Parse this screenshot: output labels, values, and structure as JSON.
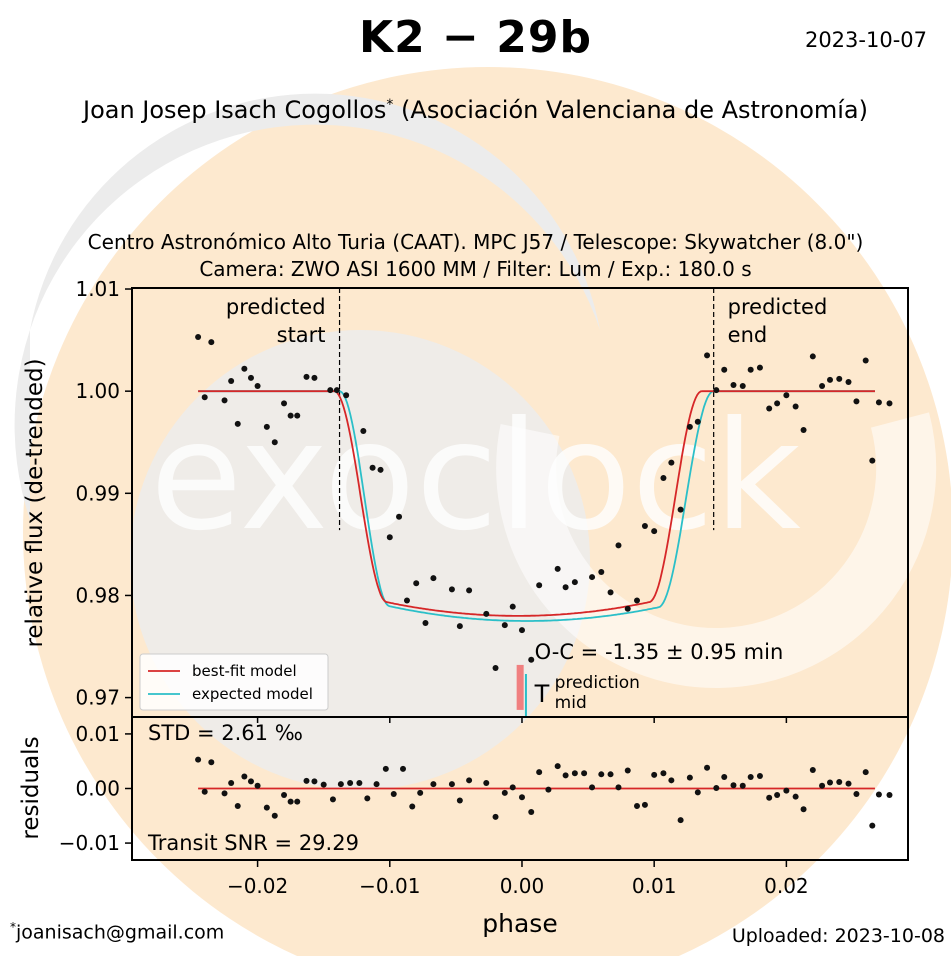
{
  "header": {
    "title": "K2 − 29b",
    "date": "2023-10-07",
    "author": "Joan Josep Isach Cogollos",
    "author_mark": "*",
    "affiliation": "(Asociación Valenciana de Astronomía)"
  },
  "observation": {
    "line1": "Centro Astronómico Alto Turia (CAAT). MPC J57 / Telescope: Skywatcher (8.0\")",
    "line2": "Camera: ZWO ASI 1600 MM / Filter: Lum / Exp.: 180.0 s"
  },
  "footer": {
    "email_mark": "*",
    "email": "joanisach@gmail.com",
    "uploaded": "Uploaded: 2023-10-08"
  },
  "watermark": {
    "text": "exoclock"
  },
  "colors": {
    "best_fit": "#d62728",
    "expected": "#2bbfc8",
    "oc_bar": "#f08080",
    "points": "#111111",
    "watermark_orange": "#fde7c8",
    "watermark_gray": "#efefef"
  },
  "chart_data": [
    {
      "type": "scatter",
      "name": "lightcurve",
      "xlabel": "phase",
      "ylabel": "relative flux (de-trended)",
      "xlim": [
        -0.0295,
        0.0292
      ],
      "ylim": [
        0.9681,
        1.0101
      ],
      "x_ticks": [
        -0.02,
        -0.01,
        0.0,
        0.01,
        0.02
      ],
      "x_tick_labels": [
        "−0.02",
        "−0.01",
        "0.00",
        "0.01",
        "0.02"
      ],
      "y_ticks": [
        0.97,
        0.98,
        0.99,
        1.0,
        1.01
      ],
      "y_tick_labels": [
        "0.97",
        "0.98",
        "0.99",
        "1.00",
        "1.01"
      ],
      "legend": [
        "best-fit model",
        "expected model"
      ],
      "legend_position": "lower-left",
      "annotations": {
        "predicted_start_label": [
          "predicted",
          "start"
        ],
        "predicted_end_label": [
          "predicted",
          "end"
        ],
        "predicted_start_phase": -0.0138,
        "predicted_end_phase": 0.0145,
        "oc_text": "O-C = -1.35 ± 0.95 min",
        "tmid_symbol": "T",
        "tmid_sup": "prediction",
        "tmid_sub": "mid",
        "oc_bar_flux": [
          0.9732,
          0.9717
        ]
      },
      "model": {
        "baseline": 1.0,
        "best_fit": {
          "t1": -0.0142,
          "t2": -0.0102,
          "t3": 0.0096,
          "t4": 0.0136,
          "depth": 0.022
        },
        "expected": {
          "t1": -0.0138,
          "t2": -0.01,
          "t3": 0.0103,
          "t4": 0.0145,
          "depth": 0.0225
        },
        "x_range": [
          -0.0245,
          0.0267
        ]
      },
      "points": [
        {
          "x": -0.0245,
          "y": 1.0053
        },
        {
          "x": -0.024,
          "y": 0.9994
        },
        {
          "x": -0.0235,
          "y": 1.0048
        },
        {
          "x": -0.0225,
          "y": 0.9991
        },
        {
          "x": -0.022,
          "y": 1.001
        },
        {
          "x": -0.0215,
          "y": 0.9968
        },
        {
          "x": -0.021,
          "y": 1.0022
        },
        {
          "x": -0.0205,
          "y": 1.0013
        },
        {
          "x": -0.02,
          "y": 1.0005
        },
        {
          "x": -0.0193,
          "y": 0.9965
        },
        {
          "x": -0.0187,
          "y": 0.995
        },
        {
          "x": -0.018,
          "y": 0.9988
        },
        {
          "x": -0.0175,
          "y": 0.9976
        },
        {
          "x": -0.017,
          "y": 0.9976
        },
        {
          "x": -0.0163,
          "y": 1.0014
        },
        {
          "x": -0.0157,
          "y": 1.0013
        },
        {
          "x": -0.0145,
          "y": 1.0001
        },
        {
          "x": -0.014,
          "y": 1.0001
        },
        {
          "x": -0.0133,
          "y": 0.9996
        },
        {
          "x": -0.012,
          "y": 0.9961
        },
        {
          "x": -0.0113,
          "y": 0.9925
        },
        {
          "x": -0.0107,
          "y": 0.9923
        },
        {
          "x": -0.01,
          "y": 0.9857
        },
        {
          "x": -0.0093,
          "y": 0.9877
        },
        {
          "x": -0.0087,
          "y": 0.9795
        },
        {
          "x": -0.008,
          "y": 0.9812
        },
        {
          "x": -0.0073,
          "y": 0.9773
        },
        {
          "x": -0.0067,
          "y": 0.9817
        },
        {
          "x": -0.0053,
          "y": 0.9806
        },
        {
          "x": -0.0047,
          "y": 0.977
        },
        {
          "x": -0.004,
          "y": 0.9805
        },
        {
          "x": -0.0027,
          "y": 0.9782
        },
        {
          "x": -0.002,
          "y": 0.9729
        },
        {
          "x": -0.0013,
          "y": 0.9771
        },
        {
          "x": -0.0007,
          "y": 0.9789
        },
        {
          "x": 0.0,
          "y": 0.9766
        },
        {
          "x": 0.0007,
          "y": 0.9737
        },
        {
          "x": 0.0013,
          "y": 0.981
        },
        {
          "x": 0.0027,
          "y": 0.9826
        },
        {
          "x": 0.0033,
          "y": 0.9808
        },
        {
          "x": 0.004,
          "y": 0.9813
        },
        {
          "x": 0.0053,
          "y": 0.9818
        },
        {
          "x": 0.006,
          "y": 0.9823
        },
        {
          "x": 0.0067,
          "y": 0.9803
        },
        {
          "x": 0.0073,
          "y": 0.9849
        },
        {
          "x": 0.008,
          "y": 0.9787
        },
        {
          "x": 0.0087,
          "y": 0.9795
        },
        {
          "x": 0.0093,
          "y": 0.9868
        },
        {
          "x": 0.01,
          "y": 0.9863
        },
        {
          "x": 0.0107,
          "y": 0.9915
        },
        {
          "x": 0.0113,
          "y": 0.993
        },
        {
          "x": 0.012,
          "y": 0.9884
        },
        {
          "x": 0.0127,
          "y": 0.9965
        },
        {
          "x": 0.0133,
          "y": 0.997
        },
        {
          "x": 0.014,
          "y": 1.0035
        },
        {
          "x": 0.0147,
          "y": 1.0001
        },
        {
          "x": 0.0153,
          "y": 1.0021
        },
        {
          "x": 0.016,
          "y": 1.0006
        },
        {
          "x": 0.0167,
          "y": 1.0005
        },
        {
          "x": 0.0173,
          "y": 1.0021
        },
        {
          "x": 0.018,
          "y": 1.0023
        },
        {
          "x": 0.0187,
          "y": 0.9983
        },
        {
          "x": 0.0193,
          "y": 0.9988
        },
        {
          "x": 0.02,
          "y": 0.9996
        },
        {
          "x": 0.0207,
          "y": 0.9985
        },
        {
          "x": 0.0213,
          "y": 0.9962
        },
        {
          "x": 0.022,
          "y": 1.0034
        },
        {
          "x": 0.0227,
          "y": 1.0005
        },
        {
          "x": 0.0233,
          "y": 1.0011
        },
        {
          "x": 0.024,
          "y": 1.0012
        },
        {
          "x": 0.0247,
          "y": 1.0009
        },
        {
          "x": 0.0253,
          "y": 0.999
        },
        {
          "x": 0.026,
          "y": 1.003
        },
        {
          "x": 0.0265,
          "y": 0.9932
        },
        {
          "x": 0.027,
          "y": 0.9989
        },
        {
          "x": 0.0278,
          "y": 0.9988
        }
      ]
    },
    {
      "type": "scatter",
      "name": "residuals",
      "ylabel": "residuals",
      "ylim": [
        -0.0131,
        0.0131
      ],
      "y_ticks": [
        -0.01,
        0.0,
        0.01
      ],
      "y_tick_labels": [
        "−0.01",
        "0.00",
        "0.01"
      ],
      "std_text": "STD = 2.61 ‰",
      "snr_text": "Transit SNR = 29.29",
      "zero_line_range": [
        -0.0245,
        0.0267
      ],
      "points": [
        {
          "x": -0.0245,
          "y": 0.0053
        },
        {
          "x": -0.024,
          "y": -0.0006
        },
        {
          "x": -0.0235,
          "y": 0.0048
        },
        {
          "x": -0.0225,
          "y": -0.0009
        },
        {
          "x": -0.022,
          "y": 0.001
        },
        {
          "x": -0.0215,
          "y": -0.0032
        },
        {
          "x": -0.021,
          "y": 0.0022
        },
        {
          "x": -0.0205,
          "y": 0.0013
        },
        {
          "x": -0.02,
          "y": 0.0005
        },
        {
          "x": -0.0193,
          "y": -0.0035
        },
        {
          "x": -0.0187,
          "y": -0.005
        },
        {
          "x": -0.018,
          "y": -0.0012
        },
        {
          "x": -0.0175,
          "y": -0.0024
        },
        {
          "x": -0.017,
          "y": -0.0024
        },
        {
          "x": -0.0163,
          "y": 0.0014
        },
        {
          "x": -0.0157,
          "y": 0.0013
        },
        {
          "x": -0.015,
          "y": 0.0007
        },
        {
          "x": -0.0143,
          "y": -0.002
        },
        {
          "x": -0.0137,
          "y": 0.0008
        },
        {
          "x": -0.013,
          "y": 0.001
        },
        {
          "x": -0.0123,
          "y": 0.001
        },
        {
          "x": -0.0117,
          "y": -0.0018
        },
        {
          "x": -0.011,
          "y": 0.0008
        },
        {
          "x": -0.0103,
          "y": 0.0036
        },
        {
          "x": -0.0097,
          "y": -0.001
        },
        {
          "x": -0.009,
          "y": 0.0036
        },
        {
          "x": -0.0083,
          "y": -0.0033
        },
        {
          "x": -0.0077,
          "y": -0.0008
        },
        {
          "x": -0.0067,
          "y": 0.0008
        },
        {
          "x": -0.0053,
          "y": 0.0008
        },
        {
          "x": -0.0047,
          "y": -0.0022
        },
        {
          "x": -0.004,
          "y": 0.0015
        },
        {
          "x": -0.0027,
          "y": 0.001
        },
        {
          "x": -0.002,
          "y": -0.0052
        },
        {
          "x": -0.0013,
          "y": -0.0008
        },
        {
          "x": -0.0007,
          "y": 0.0002
        },
        {
          "x": 0.0,
          "y": -0.0016
        },
        {
          "x": 0.0007,
          "y": -0.0043
        },
        {
          "x": 0.0013,
          "y": 0.003
        },
        {
          "x": 0.002,
          "y": -0.0002
        },
        {
          "x": 0.0027,
          "y": 0.0041
        },
        {
          "x": 0.0033,
          "y": 0.0024
        },
        {
          "x": 0.004,
          "y": 0.0028
        },
        {
          "x": 0.0047,
          "y": 0.0028
        },
        {
          "x": 0.0053,
          "y": 0.0002
        },
        {
          "x": 0.006,
          "y": 0.0026
        },
        {
          "x": 0.0067,
          "y": 0.0026
        },
        {
          "x": 0.0073,
          "y": 0.0002
        },
        {
          "x": 0.008,
          "y": 0.0033
        },
        {
          "x": 0.0087,
          "y": -0.0032
        },
        {
          "x": 0.0093,
          "y": -0.003
        },
        {
          "x": 0.01,
          "y": 0.0025
        },
        {
          "x": 0.0107,
          "y": 0.0028
        },
        {
          "x": 0.0113,
          "y": 0.0015
        },
        {
          "x": 0.012,
          "y": -0.0058
        },
        {
          "x": 0.0127,
          "y": 0.002
        },
        {
          "x": 0.0133,
          "y": -0.0007
        },
        {
          "x": 0.014,
          "y": 0.0038
        },
        {
          "x": 0.0147,
          "y": 0.0001
        },
        {
          "x": 0.0153,
          "y": 0.0021
        },
        {
          "x": 0.016,
          "y": 0.0006
        },
        {
          "x": 0.0167,
          "y": 0.0005
        },
        {
          "x": 0.0173,
          "y": 0.0021
        },
        {
          "x": 0.018,
          "y": 0.0023
        },
        {
          "x": 0.0187,
          "y": -0.0017
        },
        {
          "x": 0.0193,
          "y": -0.0012
        },
        {
          "x": 0.02,
          "y": -0.0004
        },
        {
          "x": 0.0207,
          "y": -0.0015
        },
        {
          "x": 0.0213,
          "y": -0.0038
        },
        {
          "x": 0.022,
          "y": 0.0034
        },
        {
          "x": 0.0227,
          "y": 0.0005
        },
        {
          "x": 0.0233,
          "y": 0.0011
        },
        {
          "x": 0.024,
          "y": 0.0012
        },
        {
          "x": 0.0247,
          "y": 0.0009
        },
        {
          "x": 0.0253,
          "y": -0.001
        },
        {
          "x": 0.026,
          "y": 0.003
        },
        {
          "x": 0.0265,
          "y": -0.0068
        },
        {
          "x": 0.027,
          "y": -0.0011
        },
        {
          "x": 0.0278,
          "y": -0.0012
        }
      ]
    }
  ]
}
